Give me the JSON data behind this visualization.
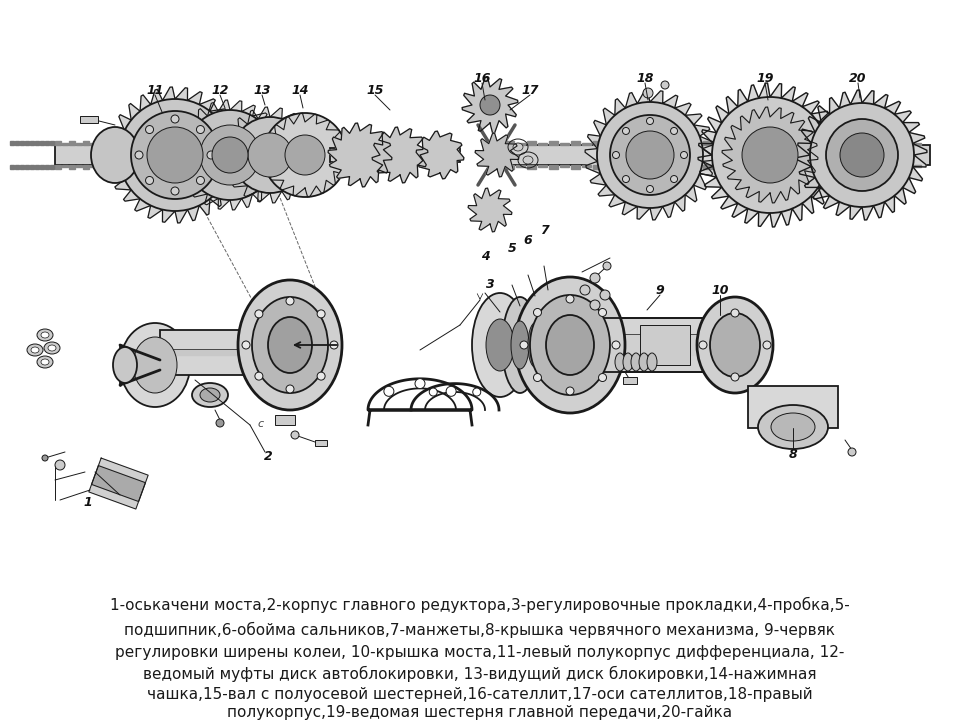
{
  "background_color": "#ffffff",
  "text_lines": [
    "1-оськачени моста,2-корпус главного редуктора,3-регулировочные прокладки,4-пробка,5-",
    "подшипник,6-обойма сальников,7-манжеты,8-крышка червячного механизма, 9-червяк",
    "регулировки ширены колеи, 10-крышка моста,11-левый полукорпус дифференциала, 12-",
    "ведомый муфты диск автоблокировки, 13-видущий диск блокировки,14-нажимная",
    "чашка,15-вал с полуосевой шестерней,16-сателлит,17-оси сателлитов,18-правый",
    "полукорпус,19-ведомая шестерня главной передачи,20-гайка"
  ],
  "text_fontsize": 11.0,
  "text_color": "#1a1a1a",
  "fig_width": 9.6,
  "fig_height": 7.2,
  "dpi": 100,
  "label_fontsize": 9,
  "label_color": "#111111"
}
